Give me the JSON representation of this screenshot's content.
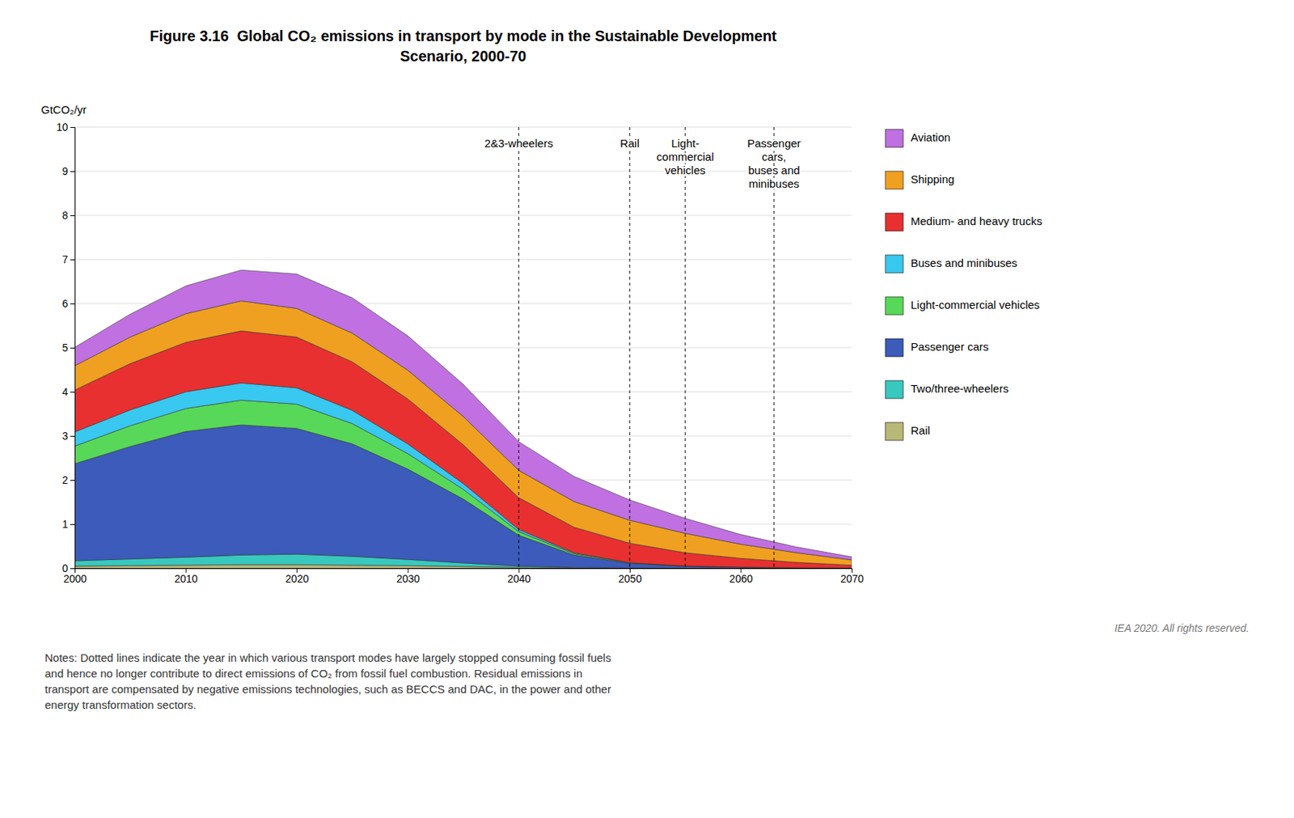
{
  "chart_data": {
    "type": "area",
    "stacked": true,
    "title": "Figure 3.16  Global CO₂ emissions in transport by mode in the Sustainable Development\nScenario, 2000-70",
    "ylabel": "GtCO₂/yr",
    "x": [
      2000,
      2005,
      2010,
      2015,
      2020,
      2025,
      2030,
      2035,
      2040,
      2045,
      2050,
      2055,
      2060,
      2065,
      2070
    ],
    "series": [
      {
        "name": "Rail",
        "color": "#b8b878",
        "values": [
          0.05,
          0.06,
          0.07,
          0.08,
          0.08,
          0.07,
          0.06,
          0.04,
          0.02,
          0.01,
          0.005,
          0.002,
          0.001,
          0.001,
          0.001
        ]
      },
      {
        "name": "Two/three-wheelers",
        "color": "#38c8be",
        "values": [
          0.12,
          0.15,
          0.18,
          0.22,
          0.24,
          0.2,
          0.14,
          0.08,
          0.03,
          0.01,
          0.005,
          0.002,
          0.001,
          0.001,
          0.001
        ]
      },
      {
        "name": "Passenger cars",
        "color": "#3c5bba",
        "values": [
          2.2,
          2.55,
          2.85,
          2.95,
          2.85,
          2.55,
          2.05,
          1.45,
          0.7,
          0.28,
          0.1,
          0.04,
          0.02,
          0.01,
          0.005
        ]
      },
      {
        "name": "Light-commercial vehicles",
        "color": "#58d858",
        "values": [
          0.4,
          0.47,
          0.52,
          0.56,
          0.55,
          0.46,
          0.35,
          0.22,
          0.08,
          0.03,
          0.01,
          0.005,
          0.002,
          0.001,
          0.001
        ]
      },
      {
        "name": "Buses and minibuses",
        "color": "#38c8f0",
        "values": [
          0.32,
          0.36,
          0.38,
          0.39,
          0.37,
          0.3,
          0.22,
          0.13,
          0.05,
          0.02,
          0.008,
          0.003,
          0.001,
          0.001,
          0.001
        ]
      },
      {
        "name": "Medium- and heavy trucks",
        "color": "#e83030",
        "values": [
          0.95,
          1.05,
          1.12,
          1.18,
          1.15,
          1.1,
          1.02,
          0.88,
          0.72,
          0.58,
          0.44,
          0.3,
          0.2,
          0.12,
          0.06
        ]
      },
      {
        "name": "Shipping",
        "color": "#f0a020",
        "values": [
          0.55,
          0.6,
          0.65,
          0.68,
          0.65,
          0.65,
          0.65,
          0.64,
          0.62,
          0.58,
          0.52,
          0.44,
          0.32,
          0.22,
          0.12
        ]
      },
      {
        "name": "Aviation",
        "color": "#c070e0",
        "values": [
          0.42,
          0.52,
          0.63,
          0.7,
          0.78,
          0.8,
          0.78,
          0.73,
          0.65,
          0.57,
          0.46,
          0.34,
          0.22,
          0.13,
          0.07
        ]
      }
    ],
    "xlim": [
      2000,
      2070
    ],
    "xticks": [
      2000,
      2010,
      2020,
      2030,
      2040,
      2050,
      2060,
      2070
    ],
    "ylim": [
      0,
      10
    ],
    "yticks": [
      0,
      1,
      2,
      3,
      4,
      5,
      6,
      7,
      8,
      9,
      10
    ],
    "grid": "y",
    "legend": "right",
    "annotations": [
      {
        "text": "2&3-wheelers",
        "x": 2040
      },
      {
        "text": "Rail",
        "x": 2050
      },
      {
        "text": "Light-\ncommercial\nvehicles",
        "x": 2055
      },
      {
        "text": "Passenger\ncars,\nbuses and\nminibuses",
        "x": 2063
      }
    ],
    "note": "Notes: Dotted lines indicate the year in which various transport modes have largely stopped consuming fossil fuels\nand hence no longer contribute to direct emissions of CO₂ from fossil fuel combustion. Residual emissions in\ntransport are compensated by negative emissions technologies, such as BECCS and DAC, in the power and other\nenergy transformation sectors.",
    "credit": "IEA 2020. All rights reserved."
  }
}
